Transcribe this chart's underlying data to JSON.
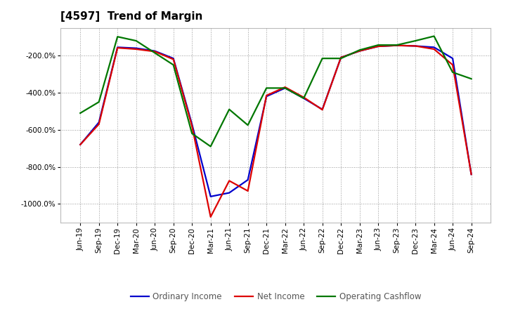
{
  "title": "[4597]  Trend of Margin",
  "ylim": [
    -1100,
    -50
  ],
  "yticks": [
    -200,
    -400,
    -600,
    -800,
    -1000
  ],
  "x_labels": [
    "Jun-19",
    "Sep-19",
    "Dec-19",
    "Mar-20",
    "Jun-20",
    "Sep-20",
    "Dec-20",
    "Mar-21",
    "Jun-21",
    "Sep-21",
    "Dec-21",
    "Mar-22",
    "Jun-22",
    "Sep-22",
    "Dec-22",
    "Mar-23",
    "Jun-23",
    "Sep-23",
    "Dec-23",
    "Mar-24",
    "Jun-24",
    "Sep-24"
  ],
  "ordinary_income": [
    -680,
    -560,
    -155,
    -160,
    -175,
    -215,
    -570,
    -960,
    -940,
    -870,
    -420,
    -375,
    -430,
    -490,
    -210,
    -175,
    -150,
    -145,
    -148,
    -155,
    -215,
    -840
  ],
  "net_income": [
    -680,
    -570,
    -158,
    -165,
    -178,
    -220,
    -580,
    -1070,
    -875,
    -930,
    -415,
    -370,
    -425,
    -492,
    -210,
    -175,
    -150,
    -145,
    -148,
    -165,
    -250,
    -840
  ],
  "operating_cashflow": [
    -510,
    -450,
    -98,
    -120,
    -185,
    -250,
    -620,
    -690,
    -490,
    -575,
    -375,
    -375,
    -430,
    -215,
    -215,
    -170,
    -143,
    -143,
    -120,
    -95,
    -290,
    -325
  ],
  "line_colors": {
    "ordinary_income": "#0000cc",
    "net_income": "#dd0000",
    "operating_cashflow": "#007700"
  },
  "line_width": 1.6,
  "background_color": "#ffffff",
  "plot_bg_color": "#ffffff",
  "grid_color": "#999999",
  "legend_labels": [
    "Ordinary Income",
    "Net Income",
    "Operating Cashflow"
  ],
  "title_fontsize": 11,
  "tick_fontsize": 7.5
}
